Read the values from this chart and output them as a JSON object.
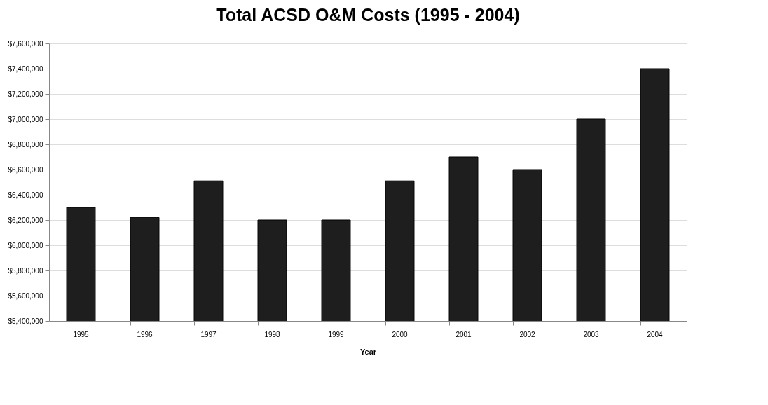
{
  "chart_data": {
    "type": "bar",
    "title": "Total ACSD O&M Costs (1995 - 2004)",
    "xlabel": "Year",
    "categories": [
      "1995",
      "1996",
      "1997",
      "1998",
      "1999",
      "2000",
      "2001",
      "2002",
      "2003",
      "2004"
    ],
    "values": [
      6300000,
      6220000,
      6510000,
      6200000,
      6200000,
      6510000,
      6700000,
      6600000,
      7000000,
      7400000
    ],
    "color": "#1e1e1e",
    "ylim": [
      5400000,
      7600000
    ],
    "yticks": [
      {
        "value": 5400000,
        "label": "$5,400,000"
      },
      {
        "value": 5600000,
        "label": "$5,600,000"
      },
      {
        "value": 5800000,
        "label": "$5,800,000"
      },
      {
        "value": 6000000,
        "label": "$6,000,000"
      },
      {
        "value": 6200000,
        "label": "$6,200,000"
      },
      {
        "value": 6400000,
        "label": "$6,400,000"
      },
      {
        "value": 6600000,
        "label": "$6,600,000"
      },
      {
        "value": 6800000,
        "label": "$6,800,000"
      },
      {
        "value": 7000000,
        "label": "$7,000,000"
      },
      {
        "value": 7200000,
        "label": "$7,200,000"
      },
      {
        "value": 7400000,
        "label": "$7,400,000"
      },
      {
        "value": 7600000,
        "label": "$7,600,000"
      }
    ],
    "grid": "y"
  }
}
